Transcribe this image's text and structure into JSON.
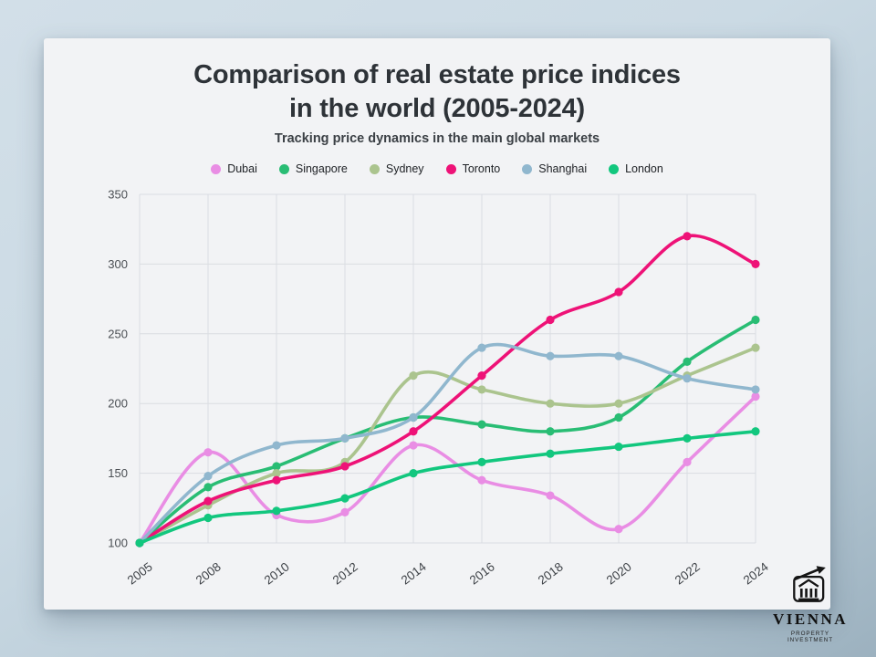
{
  "title": {
    "line1": "Comparison of real estate price indices",
    "line2": "in the world (2005-2024)",
    "subtitle": "Tracking price dynamics in the main global markets"
  },
  "chart_data": {
    "type": "line",
    "title": "Comparison of real estate price indices in the world (2005-2024)",
    "subtitle": "Tracking price dynamics in the main global markets",
    "categories": [
      "2005",
      "2008",
      "2010",
      "2012",
      "2014",
      "2016",
      "2018",
      "2020",
      "2022",
      "2024"
    ],
    "series": [
      {
        "name": "Dubai",
        "color": "#e98de4",
        "values": [
          100,
          165,
          120,
          122,
          170,
          145,
          134,
          110,
          158,
          205
        ]
      },
      {
        "name": "Singapore",
        "color": "#29bd74",
        "values": [
          100,
          140,
          155,
          175,
          190,
          185,
          180,
          190,
          230,
          260
        ]
      },
      {
        "name": "Sydney",
        "color": "#abc48e",
        "values": [
          100,
          127,
          150,
          158,
          220,
          210,
          200,
          200,
          220,
          240
        ]
      },
      {
        "name": "Toronto",
        "color": "#ee1277",
        "values": [
          100,
          130,
          145,
          155,
          180,
          220,
          260,
          280,
          320,
          300
        ]
      },
      {
        "name": "Shanghai",
        "color": "#90b7ce",
        "values": [
          100,
          148,
          170,
          175,
          190,
          240,
          234,
          234,
          218,
          210
        ]
      },
      {
        "name": "London",
        "color": "#12c77e",
        "values": [
          100,
          118,
          123,
          132,
          150,
          158,
          164,
          169,
          175,
          180
        ]
      }
    ],
    "ylim": [
      100,
      350
    ],
    "y_ticks": [
      100,
      150,
      200,
      250,
      300,
      350
    ],
    "grid": true,
    "legend_position": "top",
    "xlabel": "",
    "ylabel": ""
  },
  "logo": {
    "name": "VIENNA",
    "tagline": "PROPERTY INVESTMENT"
  }
}
